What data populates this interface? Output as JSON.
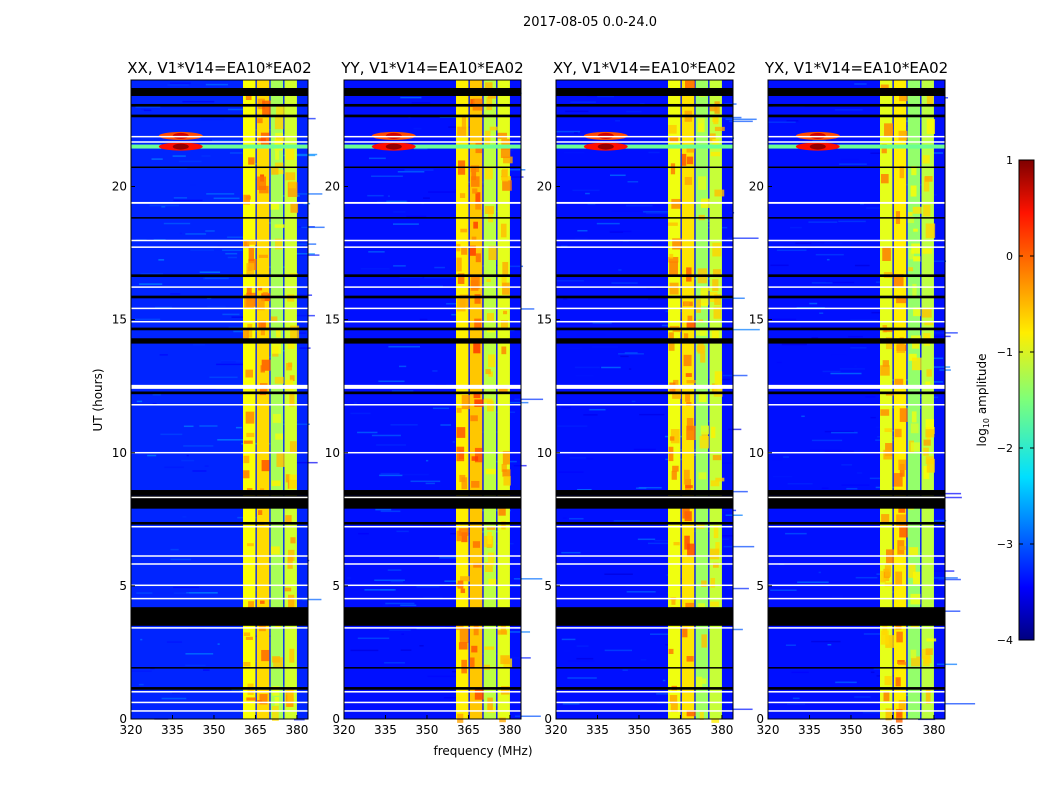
{
  "chart_data": {
    "type": "heatmap",
    "title": "2017-08-05 0.0-24.0",
    "xlabel": "frequency (MHz)",
    "ylabel": "UT (hours)",
    "xlim": [
      320,
      384
    ],
    "ylim": [
      0,
      24
    ],
    "xticks": [
      "320",
      "335",
      "350",
      "365",
      "380"
    ],
    "xtick_values": [
      320,
      335,
      350,
      365,
      380
    ],
    "yticks": [
      "0",
      "5",
      "10",
      "15",
      "20"
    ],
    "ytick_values": [
      0,
      5,
      10,
      15,
      20
    ],
    "panels": [
      {
        "title": "XX, V1*V14=EA10*EA02",
        "background_level": -3.2,
        "band_boost": 0.0
      },
      {
        "title": "YY, V1*V14=EA10*EA02",
        "background_level": -3.3,
        "band_boost": 0.1
      },
      {
        "title": "XY, V1*V14=EA10*EA02",
        "background_level": -3.3,
        "band_boost": -0.05
      },
      {
        "title": "YX, V1*V14=EA10*EA02",
        "background_level": -3.3,
        "band_boost": -0.1
      }
    ],
    "bands_mhz": [
      {
        "from": 360.5,
        "to": 365.0,
        "level": -0.9
      },
      {
        "from": 365.5,
        "to": 370.0,
        "level": -0.7
      },
      {
        "from": 370.5,
        "to": 375.0,
        "level": -1.3
      },
      {
        "from": 375.5,
        "to": 380.0,
        "level": -1.1
      }
    ],
    "rfi_events": [
      {
        "freq_mhz": 338,
        "hour": 21.5,
        "level": 0.9
      },
      {
        "freq_mhz": 338,
        "hour": 21.9,
        "level": 0.6
      }
    ],
    "rfi_line_hour": 21.5,
    "flagged_black_hours": [
      [
        23.4,
        23.7
      ],
      [
        23.0,
        23.1
      ],
      [
        22.6,
        22.7
      ],
      [
        20.7,
        20.75
      ],
      [
        18.8,
        18.85
      ],
      [
        16.6,
        16.7
      ],
      [
        15.8,
        15.9
      ],
      [
        14.6,
        14.7
      ],
      [
        14.1,
        14.3
      ],
      [
        12.2,
        12.3
      ],
      [
        8.4,
        8.6
      ],
      [
        7.9,
        8.4
      ],
      [
        7.3,
        7.4
      ],
      [
        3.5,
        4.2
      ],
      [
        1.9,
        1.95
      ],
      [
        1.1,
        1.2
      ]
    ],
    "flagged_white_hours": [
      [
        21.85,
        21.9
      ],
      [
        21.65,
        21.7
      ],
      [
        19.35,
        19.42
      ],
      [
        17.95,
        18.0
      ],
      [
        17.7,
        17.75
      ],
      [
        16.2,
        16.25
      ],
      [
        15.4,
        15.45
      ],
      [
        14.9,
        14.95
      ],
      [
        12.4,
        12.55
      ],
      [
        11.8,
        11.83
      ],
      [
        10.0,
        10.03
      ],
      [
        8.3,
        8.35
      ],
      [
        7.2,
        7.25
      ],
      [
        6.1,
        6.15
      ],
      [
        5.8,
        5.85
      ],
      [
        5.0,
        5.05
      ],
      [
        4.5,
        4.55
      ],
      [
        3.4,
        3.45
      ],
      [
        1.0,
        1.05
      ],
      [
        0.6,
        0.65
      ],
      [
        0.3,
        0.33
      ]
    ],
    "colorbar": {
      "label": "log10 amplitude",
      "label_main": "log",
      "label_sub": "10",
      "label_rest": " amplitude",
      "range": [
        -4,
        1
      ],
      "ticks": [
        "1",
        "0",
        "−1",
        "−2",
        "−3",
        "−4"
      ],
      "tick_values": [
        1,
        0,
        -1,
        -2,
        -3,
        -4
      ],
      "colormap": "jet"
    }
  }
}
